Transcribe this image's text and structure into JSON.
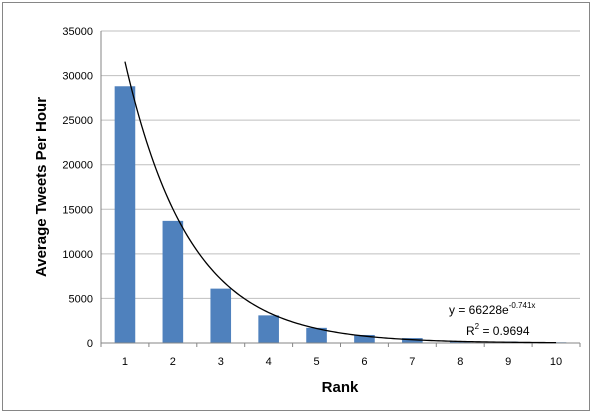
{
  "chart_data": {
    "type": "bar",
    "title": "",
    "xlabel": "Rank",
    "ylabel": "Average Tweets Per Hour",
    "categories": [
      "1",
      "2",
      "3",
      "4",
      "5",
      "6",
      "7",
      "8",
      "9",
      "10"
    ],
    "values": [
      28800,
      13700,
      6100,
      3100,
      1700,
      900,
      550,
      200,
      150,
      80
    ],
    "ylim": [
      0,
      35000
    ],
    "yticks": [
      "0",
      "5000",
      "10000",
      "15000",
      "20000",
      "25000",
      "30000",
      "35000"
    ],
    "grid": true,
    "legend": "none",
    "colors": {
      "bar": "#4f81bd",
      "trendline": "#000000",
      "grid": "#bfbfbf",
      "axis": "#868686"
    },
    "trendline": {
      "type": "exponential",
      "a": 66228,
      "b": -0.741,
      "equation_base": "y = 66228e",
      "equation_exponent": "-0.741x",
      "r2_label": "R",
      "r2_power": "2",
      "r2_value": " = 0.9694"
    }
  }
}
